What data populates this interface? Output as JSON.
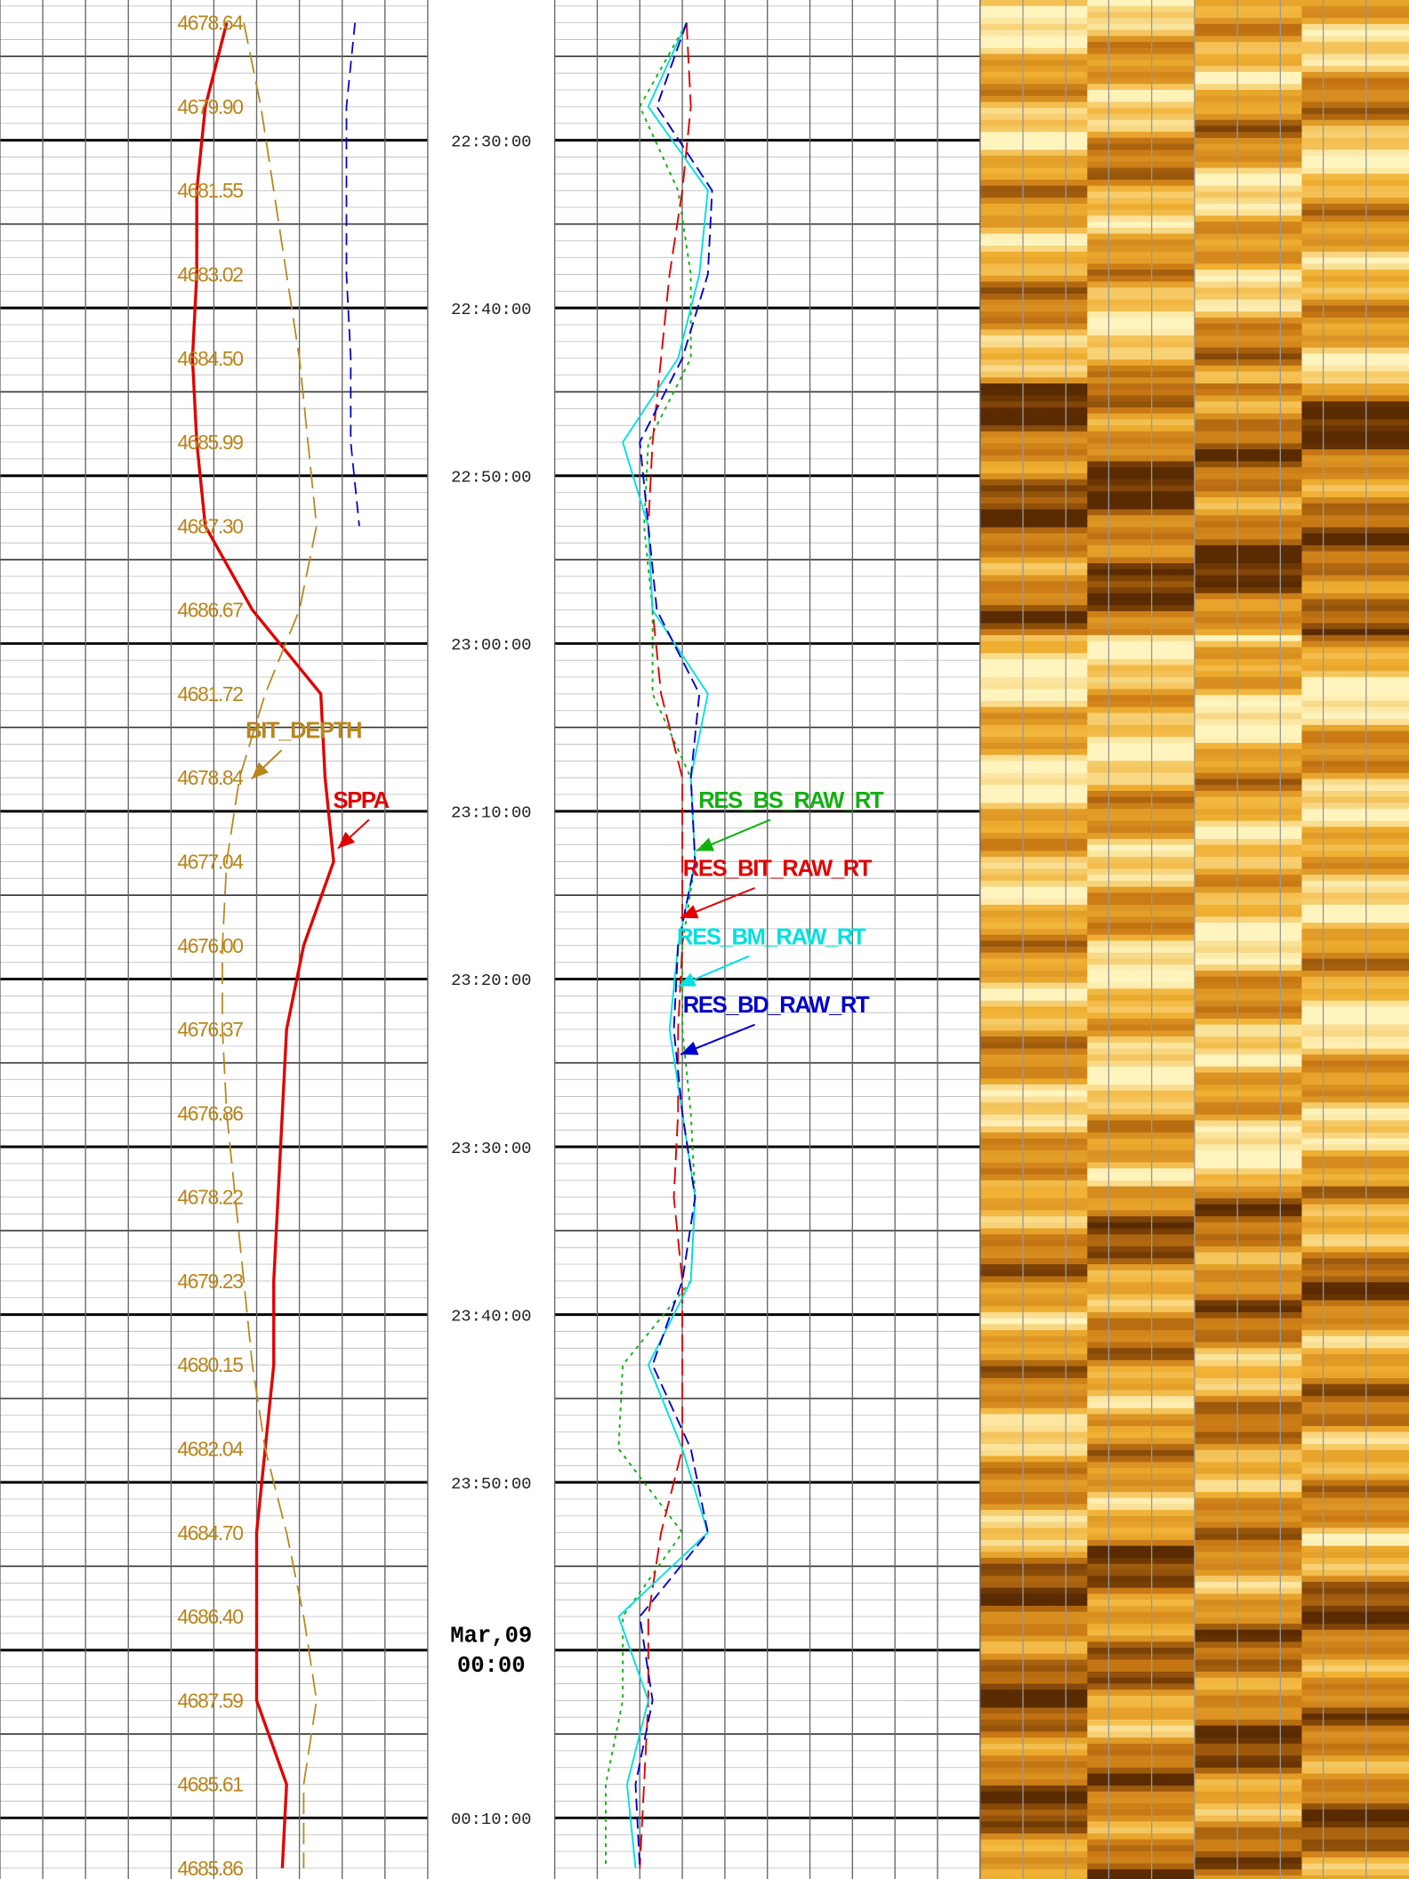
{
  "depth_track": {
    "xlim": [
      0,
      100
    ],
    "depth_labels": [
      "4678.64",
      "4679.90",
      "4681.55",
      "4683.02",
      "4684.50",
      "4685.99",
      "4687.30",
      "4686.67",
      "4681.72",
      "4678.84",
      "4677.04",
      "4676.00",
      "4676.37",
      "4676.86",
      "4678.22",
      "4679.23",
      "4680.15",
      "4682.04",
      "4684.70",
      "4686.40",
      "4687.59",
      "4685.61",
      "4685.86"
    ],
    "curves": [
      {
        "name": "SPPA",
        "color": "#e00000",
        "values": [
          53,
          48,
          46,
          46,
          45,
          46,
          48,
          59,
          75,
          76,
          78,
          71,
          67,
          66,
          65,
          64,
          64,
          62,
          60,
          60,
          60,
          67,
          66
        ]
      },
      {
        "name": "BIT_DEPTH",
        "color": "#b8861b",
        "values": [
          57,
          61,
          64,
          67,
          70,
          72,
          74,
          70,
          62,
          56,
          53,
          52,
          52,
          53,
          55,
          57,
          59,
          62,
          67,
          71,
          74,
          71,
          71
        ]
      },
      {
        "color": "#0000cc",
        "values": [
          83,
          81,
          81,
          81,
          82,
          82,
          84,
          null,
          null,
          null,
          null,
          null,
          null,
          null,
          null,
          null,
          null,
          null,
          null,
          null,
          null,
          null,
          null
        ]
      }
    ]
  },
  "time_track": {
    "labels": [
      "22:30:00",
      "22:40:00",
      "22:50:00",
      "23:00:00",
      "23:10:00",
      "23:20:00",
      "23:30:00",
      "23:40:00",
      "23:50:00",
      {
        "date": "Mar,09",
        "time": "00:00"
      },
      "00:10:00"
    ]
  },
  "resistivity_track": {
    "xlim": [
      0,
      100
    ],
    "curves": [
      {
        "name": "RES_BS_RAW_RT",
        "color": "#10b010",
        "values": [
          31,
          20,
          29,
          32,
          32,
          22,
          21,
          23,
          23,
          32,
          33,
          30,
          30,
          32,
          33,
          32,
          16,
          15,
          30,
          16,
          16,
          12,
          12
        ]
      },
      {
        "name": "RES_BIT_RAW_RT",
        "color": "#e00000",
        "values": [
          31,
          32,
          30,
          27,
          25,
          23,
          22,
          23,
          25,
          30,
          30,
          30,
          29,
          29,
          28,
          30,
          30,
          30,
          25,
          22,
          22,
          21,
          20
        ]
      },
      {
        "name": "RES_BM_RAW_RT",
        "color": "#00e0e0",
        "values": [
          31,
          22,
          36,
          34,
          29,
          16,
          22,
          23,
          36,
          32,
          33,
          29,
          27,
          30,
          33,
          32,
          22,
          30,
          36,
          15,
          22,
          17,
          19
        ]
      },
      {
        "name": "RES_BD_RAW_RT",
        "color": "#0000cc",
        "values": [
          31,
          24,
          37,
          36,
          30,
          20,
          22,
          24,
          34,
          32,
          33,
          29,
          28,
          30,
          33,
          30,
          23,
          32,
          36,
          20,
          23,
          19,
          20
        ]
      }
    ]
  }
}
